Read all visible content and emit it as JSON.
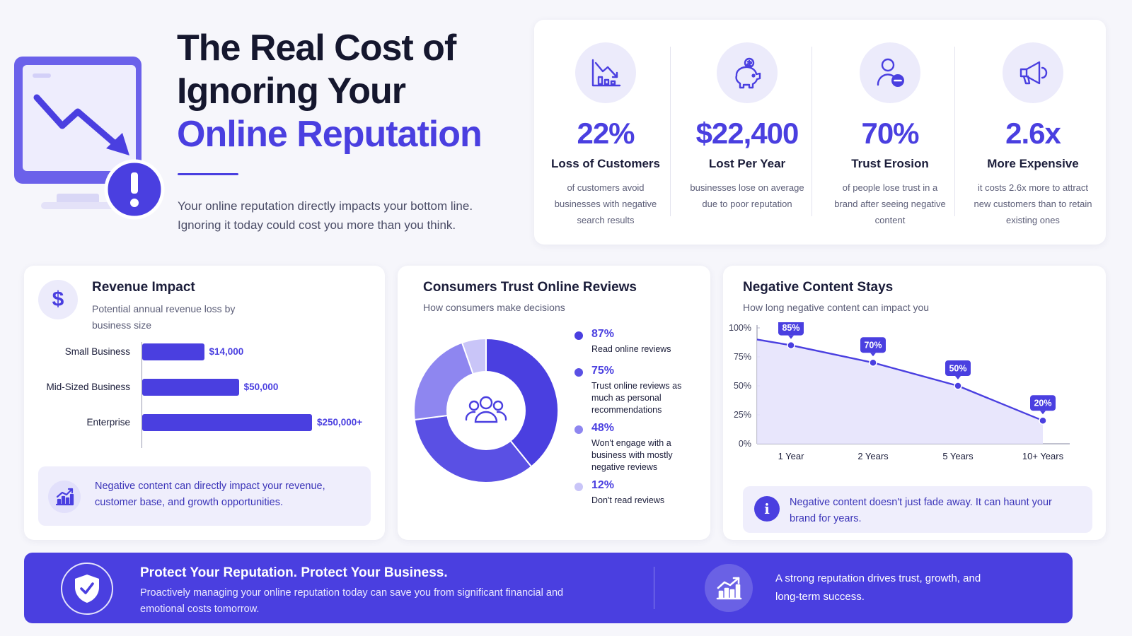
{
  "hero": {
    "title_line1": "The Real Cost of",
    "title_line2": "Ignoring Your",
    "title_line3": "Online Reputation",
    "subtitle": "Your online reputation directly impacts your bottom line. Ignoring it today could cost you more than you think.",
    "illustration_icon": "monitor-downtrend-alert-icon"
  },
  "stats": [
    {
      "icon": "chart-down-icon",
      "value": "22%",
      "label": "Loss of Customers",
      "desc": "of customers avoid businesses with negative search results"
    },
    {
      "icon": "piggy-bank-icon",
      "value": "$22,400",
      "label": "Lost Per Year",
      "desc": "businesses lose on average due to poor reputation"
    },
    {
      "icon": "user-minus-icon",
      "value": "70%",
      "label": "Trust Erosion",
      "desc": "of people lose trust in a brand after seeing negative content"
    },
    {
      "icon": "megaphone-icon",
      "value": "2.6x",
      "label": "More Expensive",
      "desc": "it costs 2.6x more to attract new customers than to retain existing ones"
    }
  ],
  "revenue": {
    "icon": "dollar-icon",
    "icon_glyph": "$",
    "title": "Revenue Impact",
    "subtitle": "Potential annual revenue loss by business size",
    "note": "Negative content can directly impact your revenue, customer base, and growth opportunities.",
    "note_icon": "growth-chart-icon"
  },
  "trust": {
    "title": "Consumers Trust Online Reviews",
    "subtitle": "How consumers make decisions",
    "center_icon": "users-icon"
  },
  "stays": {
    "title": "Negative Content Stays",
    "subtitle": "How long negative content can impact you",
    "note_icon_glyph": "i",
    "note": "Negative content doesn't just fade away. It can haunt your brand for years."
  },
  "banner": {
    "shield_icon": "shield-check-icon",
    "title": "Protect Your Reputation. Protect Your Business.",
    "text": "Proactively managing your online reputation today can save you from significant financial and emotional costs tomorrow.",
    "growth_icon": "growth-chart-icon",
    "growth_text": "A strong reputation drives trust, growth, and long-term success."
  },
  "colors": {
    "accent": "#4a3fe0",
    "accent_mid": "#7f76ee",
    "accent_light": "#b3adf5",
    "accent_pale": "#d7d4fa",
    "background": "#f6f6fb"
  },
  "chart_data": [
    {
      "type": "bar",
      "orientation": "horizontal",
      "categories": [
        "Small Business",
        "Mid-Sized Business",
        "Enterprise"
      ],
      "values": [
        14000,
        50000,
        250000
      ],
      "value_labels": [
        "$14,000",
        "$50,000",
        "$250,000+"
      ]
    },
    {
      "type": "pie",
      "variant": "donut",
      "slices": [
        {
          "label": "Read online reviews",
          "pct_label": "87%",
          "value": 87,
          "color": "#4a3fe0"
        },
        {
          "label": "Trust online reviews as much as personal recommendations",
          "pct_label": "75%",
          "value": 75,
          "color": "#5a50e4"
        },
        {
          "label": "Won't engage with a business with mostly negative reviews",
          "pct_label": "48%",
          "value": 48,
          "color": "#8e86f0"
        },
        {
          "label": "Don't read reviews",
          "pct_label": "12%",
          "value": 12,
          "color": "#c9c5f8"
        }
      ]
    },
    {
      "type": "area",
      "categories": [
        "1 Year",
        "2 Years",
        "5 Years",
        "10+ Years"
      ],
      "values": [
        85,
        70,
        50,
        20
      ],
      "value_labels": [
        "85%",
        "70%",
        "50%",
        "20%"
      ],
      "y_ticks": [
        "0%",
        "25%",
        "50%",
        "75%",
        "100%"
      ],
      "ylim": [
        0,
        100
      ],
      "y_start": 90
    }
  ]
}
